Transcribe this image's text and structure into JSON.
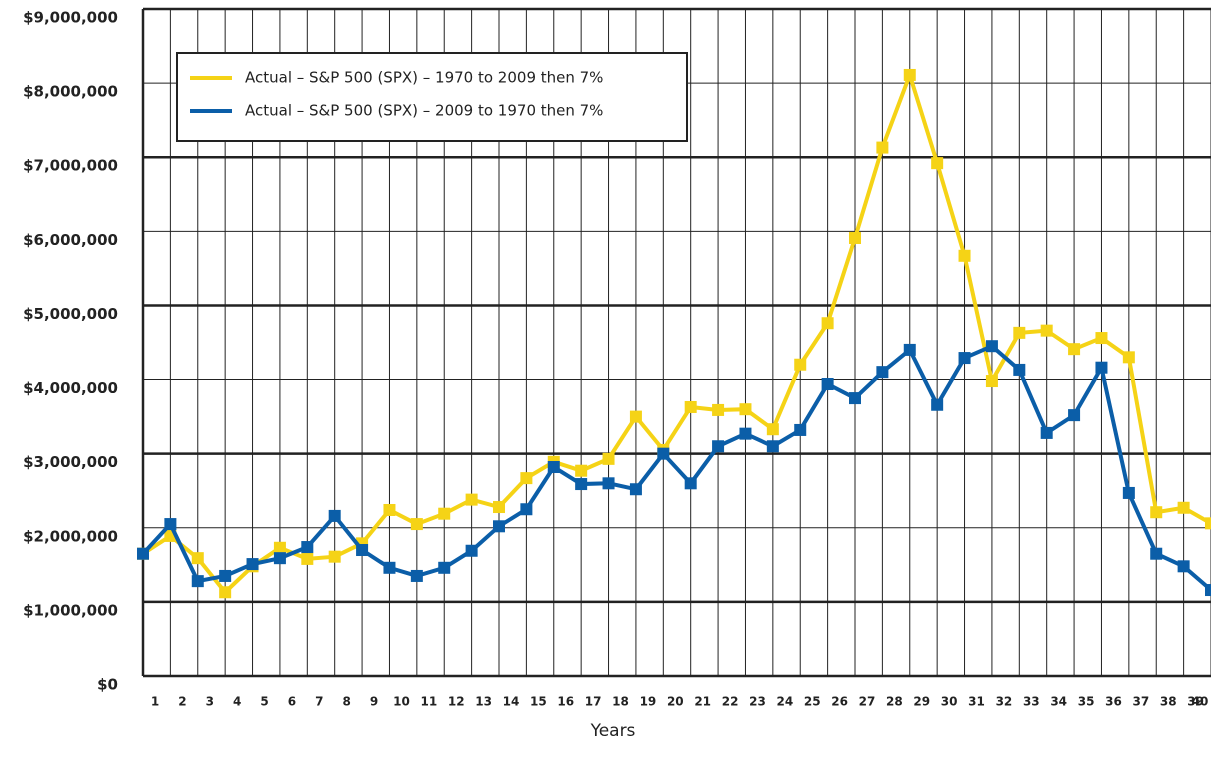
{
  "chart_data": {
    "type": "line",
    "x_label": "Years",
    "categories": [
      "1",
      "2",
      "3",
      "4",
      "5",
      "6",
      "7",
      "8",
      "9",
      "10",
      "11",
      "12",
      "13",
      "14",
      "15",
      "16",
      "17",
      "18",
      "19",
      "20",
      "21",
      "22",
      "23",
      "24",
      "25",
      "26",
      "27",
      "28",
      "29",
      "30",
      "31",
      "32",
      "33",
      "34",
      "35",
      "36",
      "37",
      "38",
      "39",
      "40"
    ],
    "series": [
      {
        "name": "Actual – S&P 500 (SPX) – 1970 to 2009 then 7%",
        "color": "#f5d316",
        "values": [
          1650000,
          1890000,
          1590000,
          1130000,
          1480000,
          1730000,
          1580000,
          1610000,
          1790000,
          2240000,
          2050000,
          2190000,
          2380000,
          2280000,
          2670000,
          2890000,
          2770000,
          2930000,
          3500000,
          3050000,
          3630000,
          3590000,
          3600000,
          3330000,
          4200000,
          4760000,
          5910000,
          7130000,
          8110000,
          6920000,
          5670000,
          3980000,
          4630000,
          4660000,
          4410000,
          4560000,
          4300000,
          2210000,
          2270000,
          2060000
        ]
      },
      {
        "name": "Actual – S&P 500 (SPX) – 2009 to 1970 then 7%",
        "color": "#0b5ea8",
        "values": [
          1650000,
          2050000,
          1280000,
          1350000,
          1510000,
          1590000,
          1740000,
          2160000,
          1700000,
          1460000,
          1350000,
          1460000,
          1690000,
          2020000,
          2250000,
          2820000,
          2590000,
          2600000,
          2520000,
          3000000,
          2600000,
          3100000,
          3270000,
          3100000,
          3320000,
          3940000,
          3750000,
          4100000,
          4400000,
          3660000,
          4290000,
          4450000,
          4130000,
          3280000,
          3520000,
          4160000,
          2470000,
          1650000,
          1480000,
          1160000
        ]
      }
    ],
    "ylim": [
      0,
      9000000
    ],
    "yticks": [
      {
        "value": 0,
        "label": "$0"
      },
      {
        "value": 1000000,
        "label": "$1,000,000"
      },
      {
        "value": 2000000,
        "label": "$2,000,000"
      },
      {
        "value": 3000000,
        "label": "$3,000,000"
      },
      {
        "value": 4000000,
        "label": "$4,000,000"
      },
      {
        "value": 5000000,
        "label": "$5,000,000"
      },
      {
        "value": 6000000,
        "label": "$6,000,000"
      },
      {
        "value": 7000000,
        "label": "$7,000,000"
      },
      {
        "value": 8000000,
        "label": "$8,000,000"
      },
      {
        "value": 9000000,
        "label": "$9,000,000"
      }
    ],
    "grid": true,
    "legend": "upper-left"
  }
}
